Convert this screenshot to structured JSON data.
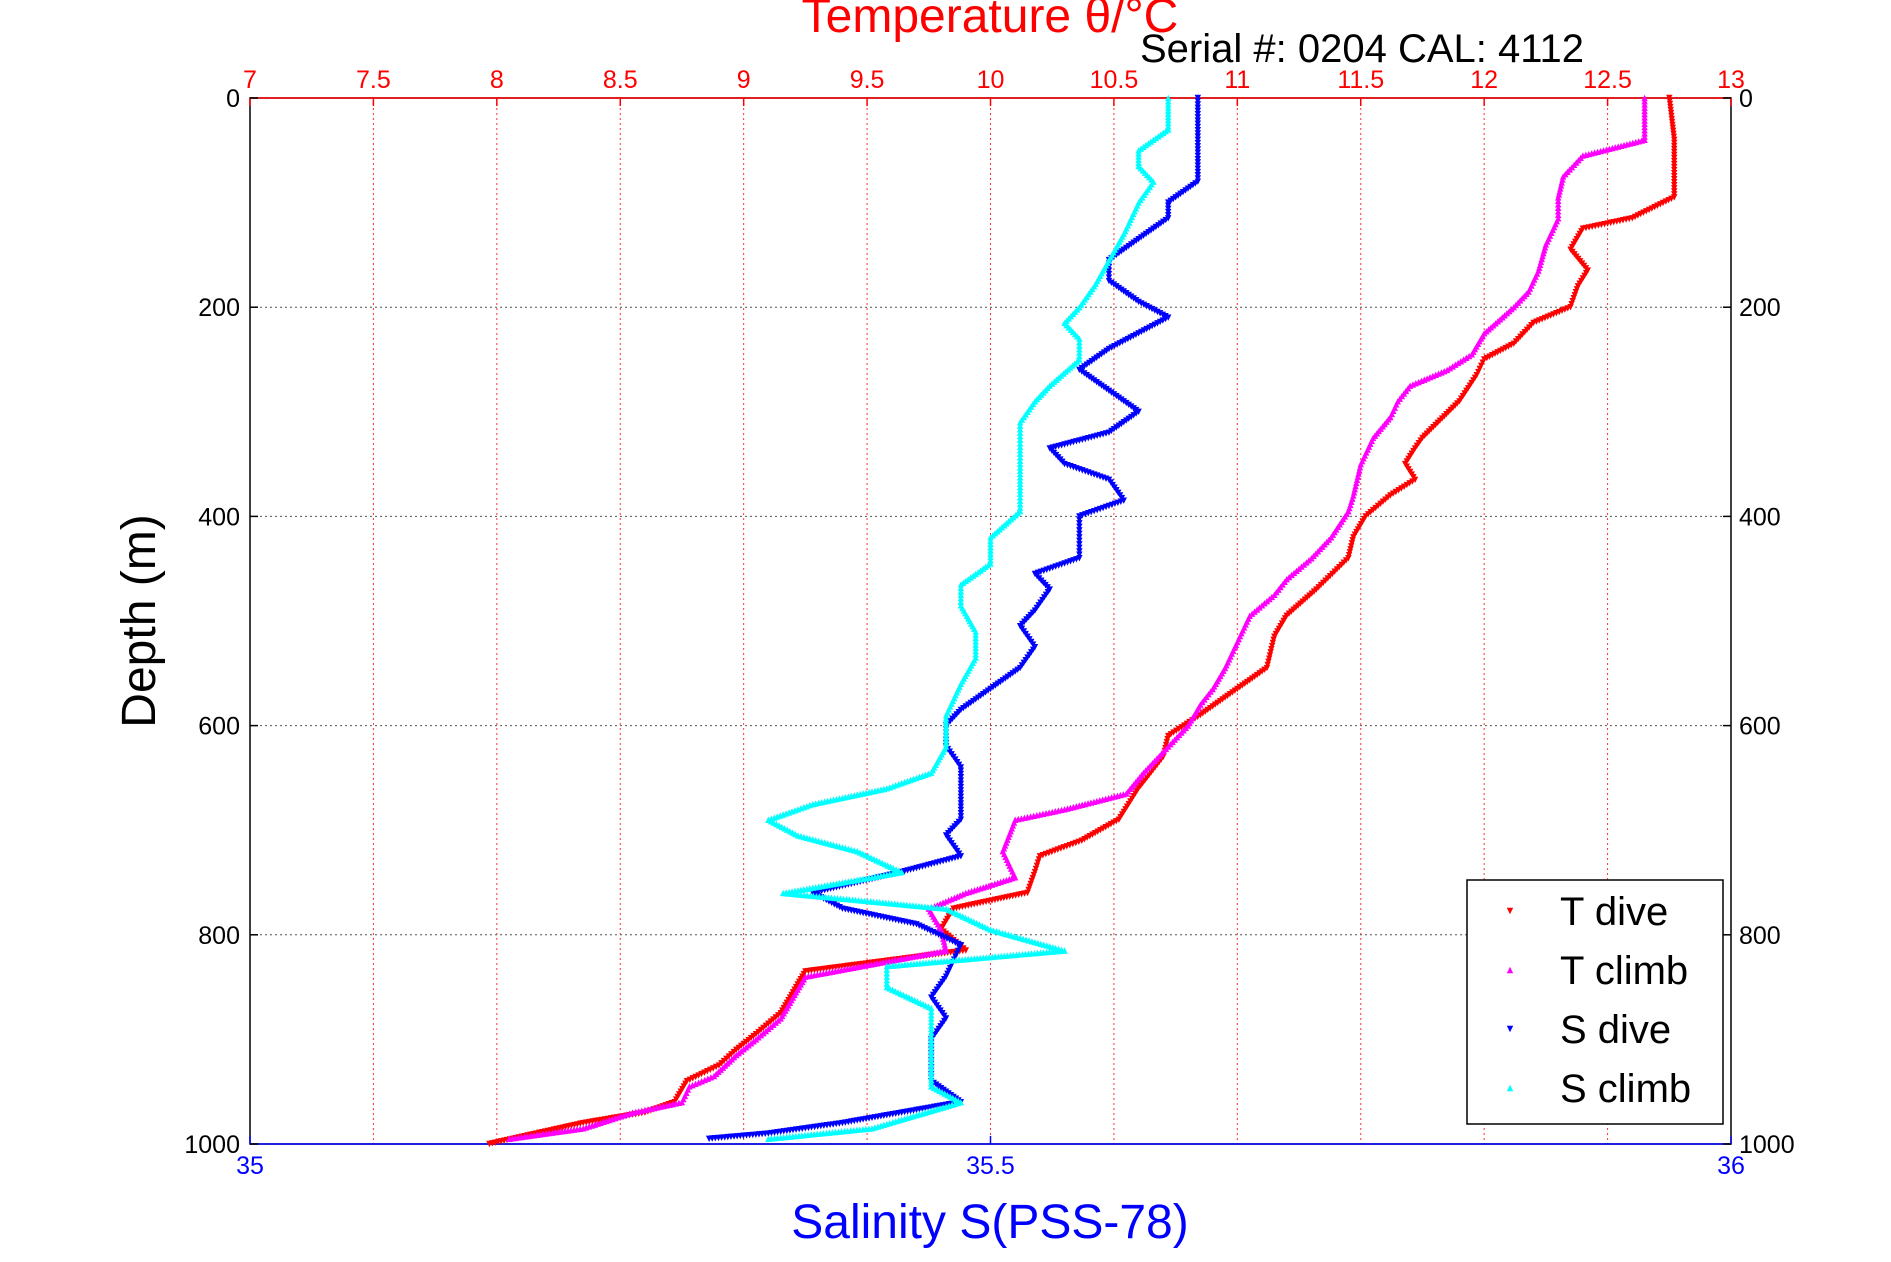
{
  "chart_data": {
    "type": "scatter",
    "top_axis": {
      "label": "Temperature θ/°C",
      "range": [
        7,
        13
      ],
      "ticks": [
        "7",
        "7.5",
        "8",
        "8.5",
        "9",
        "9.5",
        "10",
        "10.5",
        "11",
        "11.5",
        "12",
        "12.5",
        "13"
      ],
      "color": "#ff0000"
    },
    "bottom_axis": {
      "label": "Salinity S(PSS-78)",
      "range": [
        35,
        36
      ],
      "ticks": [
        "35",
        "35.5",
        "36"
      ],
      "color": "#0000ff"
    },
    "y_axis": {
      "label": "Depth (m)",
      "range": [
        0,
        1000
      ],
      "reversed": true,
      "ticks": [
        "0",
        "200",
        "400",
        "600",
        "800",
        "1000"
      ]
    },
    "annotation": "Serial #: 0204  CAL: 4112",
    "grid": true,
    "legend_position": "bottom-right",
    "series": [
      {
        "name": "T dive",
        "axis": "top",
        "color": "#ff0000",
        "marker": "triangle-down",
        "points": [
          [
            12.75,
            0
          ],
          [
            12.77,
            40
          ],
          [
            12.77,
            95
          ],
          [
            12.6,
            115
          ],
          [
            12.4,
            125
          ],
          [
            12.35,
            145
          ],
          [
            12.42,
            165
          ],
          [
            12.38,
            180
          ],
          [
            12.35,
            200
          ],
          [
            12.2,
            215
          ],
          [
            12.12,
            235
          ],
          [
            12.0,
            250
          ],
          [
            11.97,
            265
          ],
          [
            11.9,
            290
          ],
          [
            11.75,
            325
          ],
          [
            11.72,
            335
          ],
          [
            11.68,
            350
          ],
          [
            11.72,
            365
          ],
          [
            11.62,
            380
          ],
          [
            11.52,
            400
          ],
          [
            11.47,
            420
          ],
          [
            11.45,
            440
          ],
          [
            11.32,
            470
          ],
          [
            11.2,
            495
          ],
          [
            11.15,
            515
          ],
          [
            11.12,
            545
          ],
          [
            10.97,
            570
          ],
          [
            10.85,
            590
          ],
          [
            10.72,
            610
          ],
          [
            10.7,
            630
          ],
          [
            10.65,
            645
          ],
          [
            10.6,
            660
          ],
          [
            10.52,
            690
          ],
          [
            10.37,
            710
          ],
          [
            10.2,
            725
          ],
          [
            10.18,
            740
          ],
          [
            10.15,
            760
          ],
          [
            9.85,
            775
          ],
          [
            9.8,
            795
          ],
          [
            9.9,
            815
          ],
          [
            9.25,
            835
          ],
          [
            9.2,
            855
          ],
          [
            9.15,
            875
          ],
          [
            9.05,
            895
          ],
          [
            8.97,
            910
          ],
          [
            8.9,
            925
          ],
          [
            8.77,
            940
          ],
          [
            8.72,
            960
          ],
          [
            8.6,
            970
          ],
          [
            8.35,
            980
          ],
          [
            7.97,
            1000
          ]
        ]
      },
      {
        "name": "T climb",
        "axis": "top",
        "color": "#ff00ff",
        "marker": "triangle-up",
        "points": [
          [
            12.65,
            0
          ],
          [
            12.65,
            40
          ],
          [
            12.4,
            55
          ],
          [
            12.32,
            75
          ],
          [
            12.3,
            95
          ],
          [
            12.3,
            115
          ],
          [
            12.25,
            140
          ],
          [
            12.22,
            165
          ],
          [
            12.18,
            185
          ],
          [
            12.12,
            200
          ],
          [
            12.0,
            225
          ],
          [
            11.95,
            245
          ],
          [
            11.85,
            260
          ],
          [
            11.7,
            275
          ],
          [
            11.65,
            290
          ],
          [
            11.62,
            305
          ],
          [
            11.55,
            325
          ],
          [
            11.5,
            350
          ],
          [
            11.47,
            380
          ],
          [
            11.45,
            395
          ],
          [
            11.38,
            420
          ],
          [
            11.3,
            440
          ],
          [
            11.2,
            460
          ],
          [
            11.15,
            475
          ],
          [
            11.05,
            495
          ],
          [
            11.0,
            520
          ],
          [
            10.95,
            545
          ],
          [
            10.9,
            565
          ],
          [
            10.85,
            580
          ],
          [
            10.8,
            600
          ],
          [
            10.72,
            620
          ],
          [
            10.62,
            645
          ],
          [
            10.55,
            665
          ],
          [
            10.3,
            680
          ],
          [
            10.1,
            690
          ],
          [
            10.05,
            720
          ],
          [
            10.1,
            745
          ],
          [
            9.9,
            760
          ],
          [
            9.75,
            775
          ],
          [
            9.8,
            795
          ],
          [
            9.82,
            815
          ],
          [
            9.25,
            840
          ],
          [
            9.2,
            860
          ],
          [
            9.15,
            880
          ],
          [
            9.05,
            900
          ],
          [
            8.97,
            915
          ],
          [
            8.88,
            935
          ],
          [
            8.78,
            945
          ],
          [
            8.75,
            960
          ],
          [
            8.55,
            970
          ],
          [
            8.35,
            985
          ],
          [
            8.05,
            995
          ]
        ]
      },
      {
        "name": "S dive",
        "axis": "bottom",
        "color": "#0000ff",
        "marker": "triangle-down",
        "points": [
          [
            35.64,
            0
          ],
          [
            35.64,
            40
          ],
          [
            35.64,
            80
          ],
          [
            35.62,
            100
          ],
          [
            35.62,
            115
          ],
          [
            35.6,
            135
          ],
          [
            35.58,
            155
          ],
          [
            35.58,
            175
          ],
          [
            35.6,
            195
          ],
          [
            35.62,
            210
          ],
          [
            35.6,
            225
          ],
          [
            35.58,
            240
          ],
          [
            35.56,
            260
          ],
          [
            35.58,
            280
          ],
          [
            35.6,
            300
          ],
          [
            35.58,
            320
          ],
          [
            35.54,
            335
          ],
          [
            35.55,
            350
          ],
          [
            35.58,
            365
          ],
          [
            35.59,
            385
          ],
          [
            35.56,
            400
          ],
          [
            35.56,
            420
          ],
          [
            35.56,
            440
          ],
          [
            35.53,
            455
          ],
          [
            35.54,
            470
          ],
          [
            35.53,
            490
          ],
          [
            35.52,
            505
          ],
          [
            35.53,
            525
          ],
          [
            35.52,
            545
          ],
          [
            35.5,
            565
          ],
          [
            35.48,
            585
          ],
          [
            35.47,
            600
          ],
          [
            35.47,
            620
          ],
          [
            35.48,
            640
          ],
          [
            35.48,
            665
          ],
          [
            35.48,
            690
          ],
          [
            35.47,
            705
          ],
          [
            35.48,
            725
          ],
          [
            35.44,
            740
          ],
          [
            35.38,
            760
          ],
          [
            35.4,
            775
          ],
          [
            35.45,
            790
          ],
          [
            35.48,
            810
          ],
          [
            35.47,
            840
          ],
          [
            35.46,
            860
          ],
          [
            35.47,
            880
          ],
          [
            35.46,
            900
          ],
          [
            35.46,
            920
          ],
          [
            35.46,
            940
          ],
          [
            35.48,
            960
          ],
          [
            35.4,
            980
          ],
          [
            35.35,
            990
          ],
          [
            35.31,
            995
          ]
        ]
      },
      {
        "name": "S climb",
        "axis": "bottom",
        "color": "#00ffff",
        "marker": "triangle-up",
        "points": [
          [
            35.62,
            0
          ],
          [
            35.62,
            30
          ],
          [
            35.6,
            50
          ],
          [
            35.6,
            65
          ],
          [
            35.61,
            80
          ],
          [
            35.6,
            100
          ],
          [
            35.59,
            130
          ],
          [
            35.58,
            155
          ],
          [
            35.57,
            180
          ],
          [
            35.56,
            200
          ],
          [
            35.55,
            215
          ],
          [
            35.56,
            230
          ],
          [
            35.56,
            250
          ],
          [
            35.54,
            275
          ],
          [
            35.53,
            290
          ],
          [
            35.52,
            310
          ],
          [
            35.52,
            330
          ],
          [
            35.52,
            350
          ],
          [
            35.52,
            375
          ],
          [
            35.52,
            395
          ],
          [
            35.5,
            420
          ],
          [
            35.5,
            445
          ],
          [
            35.48,
            465
          ],
          [
            35.48,
            485
          ],
          [
            35.49,
            510
          ],
          [
            35.49,
            535
          ],
          [
            35.48,
            560
          ],
          [
            35.47,
            590
          ],
          [
            35.47,
            620
          ],
          [
            35.46,
            645
          ],
          [
            35.43,
            660
          ],
          [
            35.38,
            675
          ],
          [
            35.35,
            690
          ],
          [
            35.37,
            705
          ],
          [
            35.41,
            720
          ],
          [
            35.44,
            740
          ],
          [
            35.36,
            760
          ],
          [
            35.47,
            775
          ],
          [
            35.5,
            795
          ],
          [
            35.55,
            815
          ],
          [
            35.43,
            830
          ],
          [
            35.43,
            850
          ],
          [
            35.46,
            870
          ],
          [
            35.46,
            890
          ],
          [
            35.46,
            910
          ],
          [
            35.46,
            930
          ],
          [
            35.46,
            945
          ],
          [
            35.48,
            960
          ],
          [
            35.42,
            985
          ],
          [
            35.35,
            995
          ]
        ]
      }
    ]
  }
}
